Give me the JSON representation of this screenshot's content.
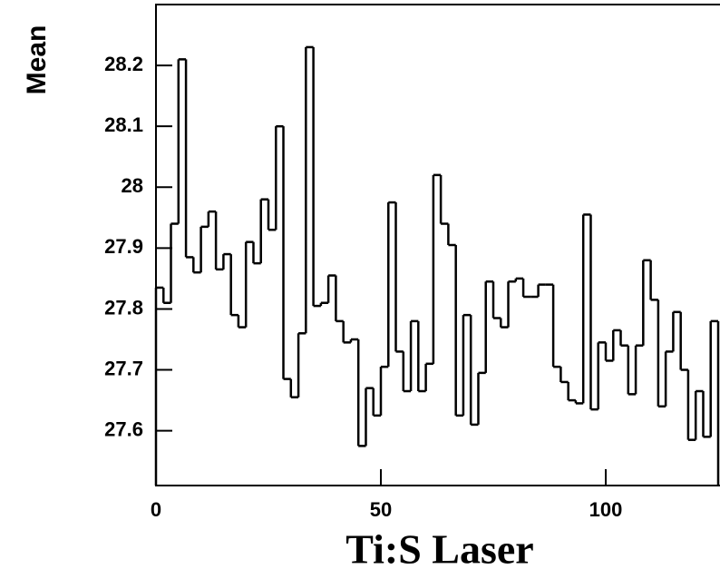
{
  "chart_data": {
    "type": "histogram",
    "ylabel": "Mean",
    "xlabel": "Ti:S Laser",
    "bins": [
      0,
      1.67,
      3.33,
      5,
      6.67,
      8.33,
      10,
      11.67,
      13.33,
      15,
      16.67,
      18.33,
      20,
      21.67,
      23.33,
      25,
      26.67,
      28.33,
      30,
      31.67,
      33.33,
      35,
      36.67,
      38.33,
      40,
      41.67,
      43.33,
      45,
      46.67,
      48.33,
      50,
      51.67,
      53.33,
      55,
      56.67,
      58.33,
      60,
      61.67,
      63.33,
      65,
      66.67,
      68.33,
      70,
      71.67,
      73.33,
      75,
      76.67,
      78.33,
      80,
      81.67,
      83.33,
      85,
      86.67,
      88.33,
      90,
      91.67,
      93.33,
      95,
      96.67,
      98.33,
      100,
      101.67,
      103.33,
      105,
      106.67,
      108.33,
      110,
      111.67,
      113.33,
      115,
      116.67,
      118.33,
      120,
      121.67,
      123.33,
      125
    ],
    "values": [
      27.835,
      27.81,
      27.94,
      28.21,
      27.885,
      27.86,
      27.935,
      27.96,
      27.865,
      27.89,
      27.79,
      27.77,
      27.91,
      27.875,
      27.98,
      27.93,
      28.1,
      27.685,
      27.655,
      27.76,
      28.23,
      27.805,
      27.81,
      27.855,
      27.78,
      27.745,
      27.75,
      27.575,
      27.67,
      27.625,
      27.705,
      27.975,
      27.73,
      27.665,
      27.78,
      27.665,
      27.71,
      28.02,
      27.94,
      27.905,
      27.625,
      27.79,
      27.61,
      27.695,
      27.845,
      27.785,
      27.77,
      27.845,
      27.85,
      27.82,
      27.82,
      27.84,
      27.84,
      27.705,
      27.68,
      27.65,
      27.645,
      27.955,
      27.635,
      27.745,
      27.715,
      27.765,
      27.74,
      27.66,
      27.74,
      27.88,
      27.815,
      27.64,
      27.73,
      27.795,
      27.7,
      27.585,
      27.665,
      27.59,
      27.78
    ],
    "color": "#000000",
    "xlim": [
      0,
      125
    ],
    "ylim": [
      27.51,
      28.3
    ],
    "xticks": [
      0,
      50,
      100
    ],
    "yticks": [
      27.6,
      27.7,
      27.8,
      27.9,
      28,
      28.1,
      28.2
    ]
  }
}
